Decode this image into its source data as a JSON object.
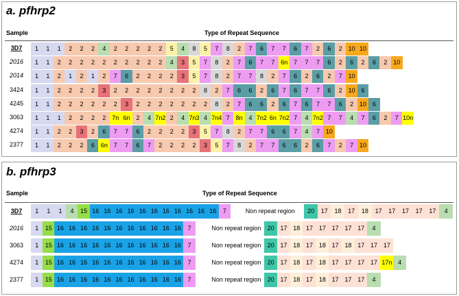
{
  "panel_a": {
    "title": "a. pfhrp2",
    "sample_header": "Sample",
    "type_header": "Type of Repeat Sequence",
    "rows": [
      {
        "sample": "3D7",
        "style": "bold",
        "cells": [
          "1",
          "1",
          "1",
          "2",
          "2",
          "2",
          "4",
          "2",
          "2",
          "2",
          "2",
          "2",
          "5",
          "4",
          "8",
          "5",
          "7",
          "8",
          "2",
          "7",
          "6",
          "7",
          "7",
          "6",
          "7",
          "2",
          "6",
          "2",
          "10",
          "10"
        ]
      },
      {
        "sample": "2016",
        "style": "ital",
        "cells": [
          "1",
          "1",
          "2",
          "2",
          "2",
          "2",
          "2",
          "2",
          "2",
          "2",
          "2",
          "2",
          "4",
          "3",
          "5",
          "7",
          "8",
          "2",
          "7",
          "6",
          "7",
          "7",
          "6n",
          "7",
          "7",
          "7",
          "6",
          "2",
          "6",
          "2",
          "6",
          "2",
          "10"
        ]
      },
      {
        "sample": "2014",
        "style": "ital",
        "cells": [
          "1",
          "1",
          "2",
          "1",
          "2",
          "1",
          "2",
          "7",
          "6",
          "2",
          "2",
          "2",
          "2",
          "3",
          "5",
          "7",
          "8",
          "2",
          "7",
          "7",
          "8",
          "2",
          "7",
          "6",
          "2",
          "6",
          "2",
          "7",
          "10"
        ]
      },
      {
        "sample": "3424",
        "style": "",
        "cells": [
          "1",
          "1",
          "2",
          "2",
          "2",
          "2",
          "3",
          "2",
          "2",
          "2",
          "2",
          "2",
          "2",
          "2",
          "2",
          "8",
          "2",
          "7",
          "6",
          "6",
          "2",
          "6",
          "7",
          "6",
          "7",
          "7",
          "6",
          "2",
          "10",
          "6"
        ]
      },
      {
        "sample": "4245",
        "style": "",
        "cells": [
          "1",
          "1",
          "2",
          "2",
          "2",
          "2",
          "2",
          "2",
          "3",
          "2",
          "2",
          "2",
          "2",
          "2",
          "2",
          "2",
          "8",
          "2",
          "7",
          "6",
          "6",
          "2",
          "6",
          "7",
          "6",
          "7",
          "7",
          "6",
          "2",
          "10",
          "6"
        ]
      },
      {
        "sample": "3063",
        "style": "",
        "cells": [
          "1",
          "1",
          "1",
          "2",
          "2",
          "2",
          "2",
          "7n",
          "6n",
          "2",
          "4",
          "7n2",
          "2",
          "4",
          "7n3",
          "4",
          "7n4",
          "7",
          "8n",
          "4",
          "7n2",
          "6n",
          "7n2",
          "7",
          "4",
          "7n2",
          "7",
          "7",
          "4",
          "7",
          "6",
          "2",
          "7",
          "10n"
        ]
      },
      {
        "sample": "4274",
        "style": "",
        "cells": [
          "1",
          "1",
          "2",
          "2",
          "3",
          "2",
          "6",
          "7",
          "7",
          "6",
          "2",
          "2",
          "2",
          "2",
          "3",
          "5",
          "7",
          "8",
          "2",
          "7",
          "7",
          "6",
          "6",
          "7",
          "4",
          "7",
          "10"
        ]
      },
      {
        "sample": "2377",
        "style": "",
        "cells": [
          "1",
          "1",
          "2",
          "2",
          "2",
          "6",
          "6n",
          "7",
          "7",
          "6",
          "7",
          "2",
          "2",
          "2",
          "2",
          "3",
          "5",
          "7",
          "8",
          "2",
          "7",
          "7",
          "6",
          "6",
          "2",
          "6",
          "7",
          "2",
          "7",
          "10"
        ]
      }
    ]
  },
  "panel_b": {
    "title": "b. pfhrp3",
    "sample_header": "Sample",
    "type_header": "Type of Repeat Sequence",
    "rows": [
      {
        "sample": "3D7",
        "style": "bold",
        "pre": [
          "1",
          "1",
          "1",
          "4",
          "15",
          "16",
          "16",
          "16",
          "16",
          "16",
          "16",
          "16",
          "16",
          "16",
          "16",
          "16",
          "7"
        ],
        "nonrep": "Non repeat region",
        "post": [
          "20",
          "17",
          "18",
          "17",
          "18",
          "17",
          "17",
          "17",
          "17",
          "17",
          "4"
        ]
      },
      {
        "sample": "2016",
        "style": "ital",
        "pre": [
          "1",
          "15",
          "16",
          "16",
          "16",
          "16",
          "16",
          "16",
          "16",
          "16",
          "16",
          "16",
          "16",
          "7"
        ],
        "nonrep": "Non repeat region",
        "post": [
          "20",
          "17",
          "18",
          "17",
          "17",
          "17",
          "17",
          "17",
          "4"
        ]
      },
      {
        "sample": "3063",
        "style": "",
        "pre": [
          "1",
          "15",
          "16",
          "16",
          "16",
          "16",
          "16",
          "16",
          "16",
          "16",
          "16",
          "16",
          "16",
          "7"
        ],
        "nonrep": "Non repeat region",
        "post": [
          "20",
          "17",
          "18",
          "17",
          "18",
          "17",
          "18",
          "17",
          "17",
          "17"
        ]
      },
      {
        "sample": "4274",
        "style": "",
        "pre": [
          "1",
          "15",
          "16",
          "16",
          "16",
          "16",
          "16",
          "16",
          "16",
          "16",
          "16",
          "16",
          "16",
          "7"
        ],
        "nonrep": "Non repeat region",
        "post": [
          "20",
          "17",
          "18",
          "17",
          "18",
          "17",
          "17",
          "17",
          "17",
          "17n",
          "4"
        ]
      },
      {
        "sample": "2377",
        "style": "",
        "pre": [
          "1",
          "15",
          "16",
          "16",
          "16",
          "16",
          "16",
          "16",
          "16",
          "16",
          "16",
          "16",
          "16",
          "7"
        ],
        "nonrep": "Non repeat region",
        "post": [
          "20",
          "17",
          "18",
          "17",
          "18",
          "17",
          "17",
          "17",
          "4"
        ]
      }
    ]
  },
  "colors": {
    "1": "#d6d9ef",
    "2": "#f7c9ae",
    "3": "#e8727a",
    "4": "#b9ddb0",
    "5": "#fbf2a8",
    "6": "#5b9ea6",
    "7": "#ee9cf2",
    "8": "#d8d8d8",
    "10": "#f7a81d",
    "n": "#ffff00",
    "15": "#97dd48",
    "16": "#1aa2e6",
    "17": "#fde1d5",
    "18": "#fdefd8",
    "20": "#3fc6a8"
  }
}
